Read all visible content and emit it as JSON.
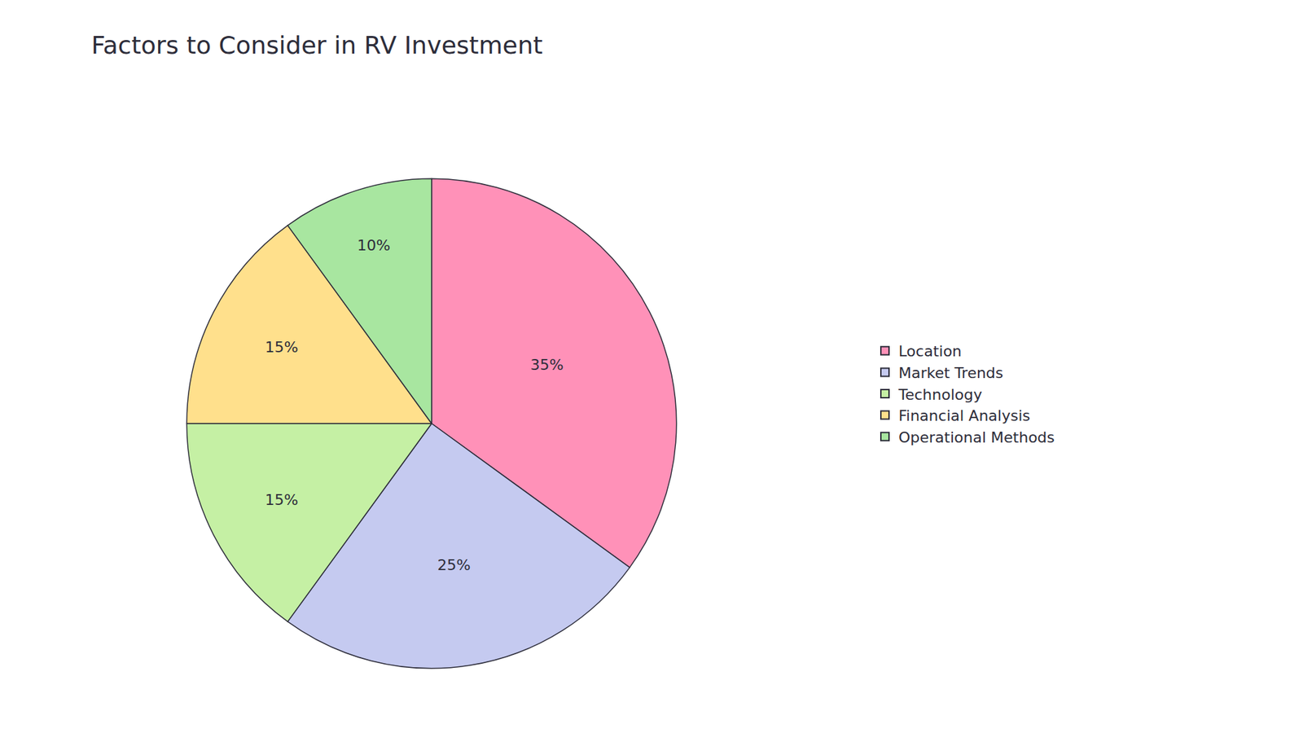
{
  "chart_data": {
    "type": "pie",
    "title": "Factors to Consider in RV Investment",
    "categories": [
      "Location",
      "Market Trends",
      "Technology",
      "Financial Analysis",
      "Operational Methods"
    ],
    "values": [
      35,
      25,
      15,
      15,
      10
    ],
    "value_labels": [
      "35%",
      "25%",
      "15%",
      "15%",
      "10%"
    ],
    "colors": [
      "#FF91B8",
      "#C5CAF0",
      "#C5F0A4",
      "#FFE08C",
      "#A8E6A0"
    ],
    "data_labels": true,
    "legend": "right"
  }
}
